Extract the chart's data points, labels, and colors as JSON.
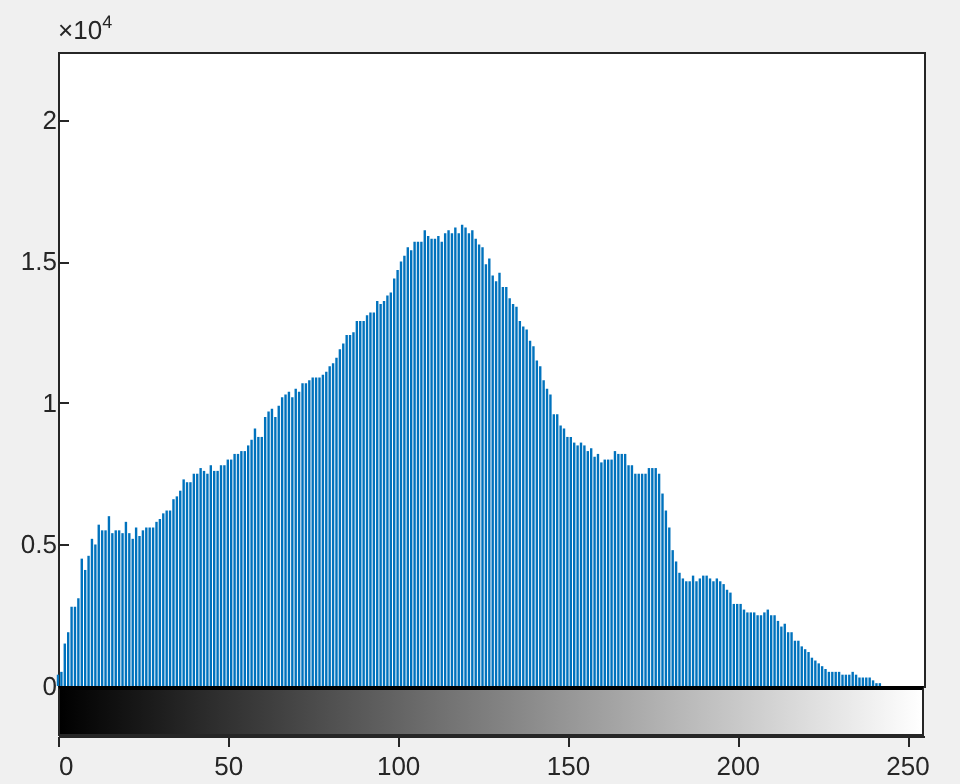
{
  "chart_data": {
    "type": "bar",
    "color": "#0072bd",
    "x": [
      0,
      1,
      2,
      3,
      4,
      5,
      6,
      7,
      8,
      9,
      10,
      11,
      12,
      13,
      14,
      15,
      16,
      17,
      18,
      19,
      20,
      21,
      22,
      23,
      24,
      25,
      26,
      27,
      28,
      29,
      30,
      31,
      32,
      33,
      34,
      35,
      36,
      37,
      38,
      39,
      40,
      41,
      42,
      43,
      44,
      45,
      46,
      47,
      48,
      49,
      50,
      51,
      52,
      53,
      54,
      55,
      56,
      57,
      58,
      59,
      60,
      61,
      62,
      63,
      64,
      65,
      66,
      67,
      68,
      69,
      70,
      71,
      72,
      73,
      74,
      75,
      76,
      77,
      78,
      79,
      80,
      81,
      82,
      83,
      84,
      85,
      86,
      87,
      88,
      89,
      90,
      91,
      92,
      93,
      94,
      95,
      96,
      97,
      98,
      99,
      100,
      101,
      102,
      103,
      104,
      105,
      106,
      107,
      108,
      109,
      110,
      111,
      112,
      113,
      114,
      115,
      116,
      117,
      118,
      119,
      120,
      121,
      122,
      123,
      124,
      125,
      126,
      127,
      128,
      129,
      130,
      131,
      132,
      133,
      134,
      135,
      136,
      137,
      138,
      139,
      140,
      141,
      142,
      143,
      144,
      145,
      146,
      147,
      148,
      149,
      150,
      151,
      152,
      153,
      154,
      155,
      156,
      157,
      158,
      159,
      160,
      161,
      162,
      163,
      164,
      165,
      166,
      167,
      168,
      169,
      170,
      171,
      172,
      173,
      174,
      175,
      176,
      177,
      178,
      179,
      180,
      181,
      182,
      183,
      184,
      185,
      186,
      187,
      188,
      189,
      190,
      191,
      192,
      193,
      194,
      195,
      196,
      197,
      198,
      199,
      200,
      201,
      202,
      203,
      204,
      205,
      206,
      207,
      208,
      209,
      210,
      211,
      212,
      213,
      214,
      215,
      216,
      217,
      218,
      219,
      220,
      221,
      222,
      223,
      224,
      225,
      226,
      227,
      228,
      229,
      230,
      231,
      232,
      233,
      234,
      235,
      236,
      237,
      238,
      239,
      240,
      241,
      242,
      243,
      244,
      245,
      246,
      247,
      248,
      249,
      250,
      251,
      252,
      253,
      254,
      255
    ],
    "values": [
      0.04,
      0.05,
      0.15,
      0.19,
      0.28,
      0.28,
      0.31,
      0.45,
      0.41,
      0.46,
      0.52,
      0.5,
      0.57,
      0.55,
      0.55,
      0.6,
      0.54,
      0.55,
      0.55,
      0.54,
      0.58,
      0.54,
      0.52,
      0.56,
      0.53,
      0.55,
      0.56,
      0.56,
      0.56,
      0.58,
      0.59,
      0.61,
      0.62,
      0.62,
      0.66,
      0.67,
      0.69,
      0.73,
      0.72,
      0.72,
      0.75,
      0.75,
      0.77,
      0.76,
      0.75,
      0.78,
      0.76,
      0.76,
      0.78,
      0.78,
      0.8,
      0.8,
      0.82,
      0.82,
      0.83,
      0.83,
      0.85,
      0.87,
      0.91,
      0.88,
      0.88,
      0.95,
      0.97,
      0.98,
      0.95,
      0.99,
      1.02,
      1.03,
      1.04,
      1.02,
      1.05,
      1.04,
      1.07,
      1.07,
      1.08,
      1.09,
      1.09,
      1.09,
      1.1,
      1.11,
      1.13,
      1.14,
      1.16,
      1.19,
      1.21,
      1.24,
      1.24,
      1.25,
      1.29,
      1.29,
      1.29,
      1.31,
      1.32,
      1.32,
      1.36,
      1.35,
      1.36,
      1.38,
      1.39,
      1.44,
      1.47,
      1.5,
      1.52,
      1.55,
      1.54,
      1.57,
      1.57,
      1.57,
      1.61,
      1.59,
      1.58,
      1.58,
      1.59,
      1.57,
      1.6,
      1.61,
      1.6,
      1.62,
      1.6,
      1.63,
      1.62,
      1.6,
      1.61,
      1.58,
      1.56,
      1.55,
      1.49,
      1.51,
      1.45,
      1.43,
      1.46,
      1.41,
      1.41,
      1.37,
      1.35,
      1.34,
      1.29,
      1.27,
      1.26,
      1.22,
      1.2,
      1.15,
      1.13,
      1.08,
      1.05,
      1.03,
      0.96,
      0.96,
      0.92,
      0.91,
      0.88,
      0.88,
      0.86,
      0.85,
      0.86,
      0.85,
      0.83,
      0.84,
      0.81,
      0.82,
      0.79,
      0.8,
      0.8,
      0.8,
      0.83,
      0.82,
      0.82,
      0.82,
      0.78,
      0.78,
      0.75,
      0.75,
      0.75,
      0.75,
      0.77,
      0.77,
      0.77,
      0.75,
      0.68,
      0.62,
      0.56,
      0.48,
      0.44,
      0.4,
      0.38,
      0.37,
      0.37,
      0.39,
      0.37,
      0.38,
      0.39,
      0.39,
      0.38,
      0.37,
      0.38,
      0.37,
      0.36,
      0.34,
      0.33,
      0.29,
      0.29,
      0.29,
      0.27,
      0.26,
      0.26,
      0.26,
      0.25,
      0.25,
      0.26,
      0.27,
      0.25,
      0.25,
      0.23,
      0.21,
      0.22,
      0.19,
      0.19,
      0.16,
      0.16,
      0.14,
      0.13,
      0.12,
      0.1,
      0.09,
      0.08,
      0.07,
      0.06,
      0.05,
      0.05,
      0.05,
      0.05,
      0.04,
      0.04,
      0.04,
      0.05,
      0.04,
      0.03,
      0.03,
      0.03,
      0.03,
      0.02,
      0.01,
      0.01,
      0,
      0,
      0,
      0,
      0,
      0,
      0,
      0,
      0,
      0,
      0,
      0,
      0
    ],
    "xlim": [
      0,
      255
    ],
    "ylim": [
      0,
      2.24
    ],
    "xticks": [
      0,
      50,
      100,
      150,
      200,
      250
    ],
    "yticks": [
      0,
      0.5,
      1,
      1.5,
      2
    ],
    "annotations": [
      "×10$^{4}$"
    ]
  }
}
